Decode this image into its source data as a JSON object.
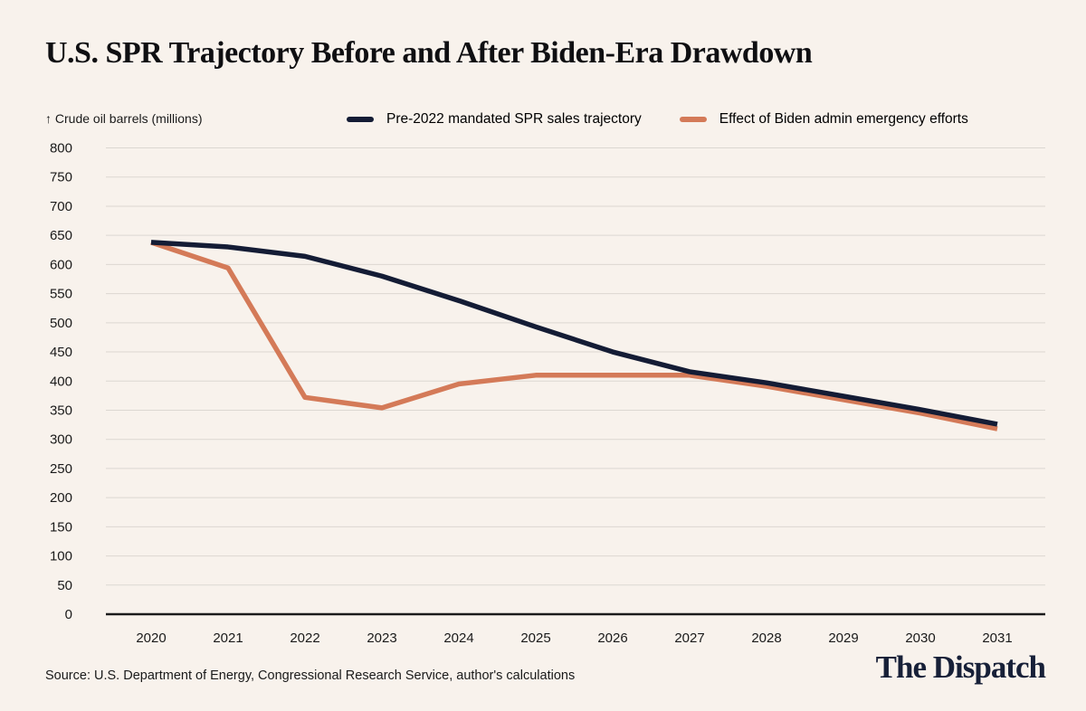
{
  "page": {
    "title": "U.S. SPR Trajectory Before and After Biden-Era Drawdown",
    "source": "Source: U.S. Department of Energy, Congressional Research Service, author's calculations",
    "brand": "The Dispatch"
  },
  "chart_data": {
    "type": "line",
    "title": "U.S. SPR Trajectory Before and After Biden-Era Drawdown",
    "y_axis_label": "↑ Crude oil barrels (millions)",
    "ylabel": "Crude oil barrels (millions)",
    "xlabel": "",
    "categories": [
      "2020",
      "2021",
      "2022",
      "2023",
      "2024",
      "2025",
      "2026",
      "2027",
      "2028",
      "2029",
      "2030",
      "2031"
    ],
    "ylim": [
      0,
      800
    ],
    "y_tick_step": 50,
    "grid": true,
    "legend_position": "top",
    "series": [
      {
        "name": "Pre-2022 mandated SPR sales trajectory",
        "color": "#141c35",
        "values": [
          638,
          630,
          614,
          580,
          538,
          493,
          450,
          416,
          397,
          374,
          351,
          326
        ]
      },
      {
        "name": "Effect of Biden admin emergency efforts",
        "color": "#d47a58",
        "values": [
          638,
          594,
          372,
          354,
          395,
          410,
          410,
          410,
          391,
          368,
          345,
          318
        ]
      }
    ]
  },
  "colors": {
    "background": "#f8f2ec",
    "gridline": "#dcd7d1",
    "axis_line": "#1b1b1b",
    "tick_text": "#1a1a1a",
    "title_text": "#0f0f12",
    "brand_text": "#172038"
  }
}
